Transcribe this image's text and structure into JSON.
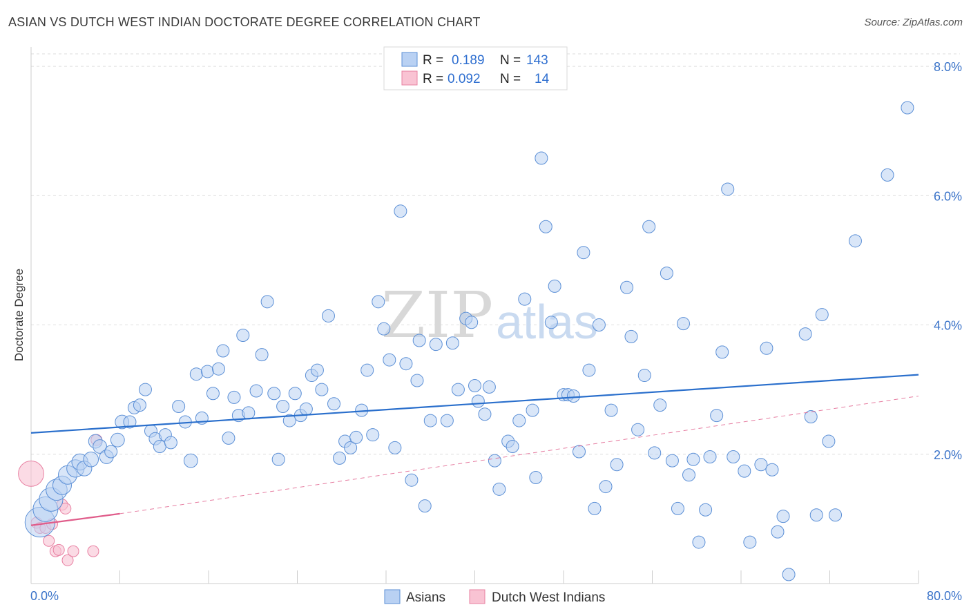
{
  "header": {
    "title": "ASIAN VS DUTCH WEST INDIAN DOCTORATE DEGREE CORRELATION CHART",
    "source": "Source: ZipAtlas.com"
  },
  "colors": {
    "blue_fill": "#b9d1f3",
    "blue_stroke": "#5b8fd6",
    "blue_line": "#2a6fcc",
    "pink_fill": "#f9c3d3",
    "pink_stroke": "#e880a2",
    "pink_line": "#e05c8a",
    "tick_label": "#3a73c9",
    "grid": "#dddddd"
  },
  "watermark": {
    "zip": "ZIP",
    "atlas": "atlas"
  },
  "legend": {
    "rows": [
      {
        "r_label": "R =",
        "r_value": "0.189",
        "n_label": "N =",
        "n_value": "143",
        "series": "blue"
      },
      {
        "r_label": "R =",
        "r_value": "0.092",
        "n_label": "N =",
        "n_value": "14",
        "series": "pink"
      }
    ]
  },
  "bottom_legend": [
    {
      "label": "Asians",
      "series": "blue"
    },
    {
      "label": "Dutch West Indians",
      "series": "pink"
    }
  ],
  "chart_data": {
    "type": "scatter",
    "title": "ASIAN VS DUTCH WEST INDIAN DOCTORATE DEGREE CORRELATION CHART",
    "xlabel": "",
    "ylabel": "Doctorate Degree",
    "xlim": [
      0,
      80
    ],
    "ylim": [
      0,
      8.3
    ],
    "x_tick_labels": [
      {
        "value": 0,
        "label": "0.0%"
      },
      {
        "value": 80,
        "label": "80.0%"
      }
    ],
    "y_tick_labels": [
      {
        "value": 2,
        "label": "2.0%"
      },
      {
        "value": 4,
        "label": "4.0%"
      },
      {
        "value": 6,
        "label": "6.0%"
      },
      {
        "value": 8,
        "label": "8.0%"
      }
    ],
    "y_gridlines": [
      2,
      4,
      6,
      8
    ],
    "x_ticks": [
      0,
      8,
      16,
      24,
      32,
      40,
      48,
      56,
      64,
      72,
      80
    ],
    "series": [
      {
        "name": "Asians",
        "color": "blue",
        "r": 0.189,
        "n": 143,
        "trend": {
          "x": [
            0,
            80
          ],
          "y": [
            2.33,
            3.23
          ]
        },
        "points": [
          {
            "x": 0.8,
            "y": 0.95,
            "s": 2.4
          },
          {
            "x": 1.3,
            "y": 1.15,
            "s": 2.0
          },
          {
            "x": 1.8,
            "y": 1.3,
            "s": 1.9
          },
          {
            "x": 2.3,
            "y": 1.45,
            "s": 1.7
          },
          {
            "x": 2.8,
            "y": 1.52,
            "s": 1.5
          },
          {
            "x": 3.3,
            "y": 1.68,
            "s": 1.5
          },
          {
            "x": 4.0,
            "y": 1.78,
            "s": 1.4
          },
          {
            "x": 4.4,
            "y": 1.88,
            "s": 1.3
          },
          {
            "x": 4.8,
            "y": 1.78,
            "s": 1.2
          },
          {
            "x": 5.4,
            "y": 1.92,
            "s": 1.2
          },
          {
            "x": 5.8,
            "y": 2.2,
            "s": 1.1
          },
          {
            "x": 6.2,
            "y": 2.12,
            "s": 1.1
          },
          {
            "x": 6.8,
            "y": 1.96,
            "s": 1.1
          },
          {
            "x": 7.2,
            "y": 2.04,
            "s": 1.0
          },
          {
            "x": 7.8,
            "y": 2.22,
            "s": 1.1
          },
          {
            "x": 8.2,
            "y": 2.5,
            "s": 1.1
          },
          {
            "x": 8.9,
            "y": 2.5,
            "s": 1.0
          },
          {
            "x": 9.3,
            "y": 2.72,
            "s": 1.0
          },
          {
            "x": 9.8,
            "y": 2.76,
            "s": 1.0
          },
          {
            "x": 10.3,
            "y": 3.0,
            "s": 1.0
          },
          {
            "x": 10.8,
            "y": 2.36,
            "s": 1.0
          },
          {
            "x": 11.2,
            "y": 2.24,
            "s": 1.0
          },
          {
            "x": 11.6,
            "y": 2.12,
            "s": 1.0
          },
          {
            "x": 12.1,
            "y": 2.3,
            "s": 1.0
          },
          {
            "x": 12.6,
            "y": 2.18,
            "s": 1.0
          },
          {
            "x": 13.3,
            "y": 2.74,
            "s": 1.0
          },
          {
            "x": 13.9,
            "y": 2.5,
            "s": 1.0
          },
          {
            "x": 14.4,
            "y": 1.9,
            "s": 1.1
          },
          {
            "x": 14.9,
            "y": 3.24,
            "s": 1.0
          },
          {
            "x": 15.4,
            "y": 2.56,
            "s": 1.0
          },
          {
            "x": 15.9,
            "y": 3.28,
            "s": 1.0
          },
          {
            "x": 16.4,
            "y": 2.94,
            "s": 1.0
          },
          {
            "x": 16.9,
            "y": 3.32,
            "s": 1.0
          },
          {
            "x": 17.3,
            "y": 3.6,
            "s": 1.0
          },
          {
            "x": 17.8,
            "y": 2.25,
            "s": 1.0
          },
          {
            "x": 18.3,
            "y": 2.88,
            "s": 1.0
          },
          {
            "x": 18.7,
            "y": 2.6,
            "s": 1.0
          },
          {
            "x": 19.1,
            "y": 3.84,
            "s": 1.0
          },
          {
            "x": 19.6,
            "y": 2.64,
            "s": 1.0
          },
          {
            "x": 20.3,
            "y": 2.98,
            "s": 1.0
          },
          {
            "x": 20.8,
            "y": 3.54,
            "s": 1.0
          },
          {
            "x": 21.3,
            "y": 4.36,
            "s": 1.0
          },
          {
            "x": 21.9,
            "y": 2.94,
            "s": 1.0
          },
          {
            "x": 22.3,
            "y": 1.92,
            "s": 1.0
          },
          {
            "x": 22.7,
            "y": 2.74,
            "s": 1.0
          },
          {
            "x": 23.3,
            "y": 2.52,
            "s": 1.0
          },
          {
            "x": 23.8,
            "y": 2.94,
            "s": 1.0
          },
          {
            "x": 24.3,
            "y": 2.6,
            "s": 1.0
          },
          {
            "x": 24.8,
            "y": 2.7,
            "s": 1.0
          },
          {
            "x": 25.3,
            "y": 3.22,
            "s": 1.0
          },
          {
            "x": 25.8,
            "y": 3.3,
            "s": 1.0
          },
          {
            "x": 26.2,
            "y": 3.0,
            "s": 1.0
          },
          {
            "x": 26.8,
            "y": 4.14,
            "s": 1.0
          },
          {
            "x": 27.3,
            "y": 2.78,
            "s": 1.0
          },
          {
            "x": 27.8,
            "y": 1.94,
            "s": 1.0
          },
          {
            "x": 28.3,
            "y": 2.2,
            "s": 1.0
          },
          {
            "x": 28.8,
            "y": 2.1,
            "s": 1.0
          },
          {
            "x": 29.3,
            "y": 2.26,
            "s": 1.0
          },
          {
            "x": 29.8,
            "y": 2.68,
            "s": 1.0
          },
          {
            "x": 30.3,
            "y": 3.3,
            "s": 1.0
          },
          {
            "x": 30.8,
            "y": 2.3,
            "s": 1.0
          },
          {
            "x": 31.3,
            "y": 4.36,
            "s": 1.0
          },
          {
            "x": 31.8,
            "y": 3.94,
            "s": 1.0
          },
          {
            "x": 32.3,
            "y": 3.46,
            "s": 1.0
          },
          {
            "x": 32.8,
            "y": 2.1,
            "s": 1.0
          },
          {
            "x": 33.3,
            "y": 5.76,
            "s": 1.0
          },
          {
            "x": 33.8,
            "y": 3.4,
            "s": 1.0
          },
          {
            "x": 34.3,
            "y": 1.6,
            "s": 1.0
          },
          {
            "x": 34.8,
            "y": 3.14,
            "s": 1.0
          },
          {
            "x": 35.0,
            "y": 3.76,
            "s": 1.0
          },
          {
            "x": 35.5,
            "y": 1.2,
            "s": 1.0
          },
          {
            "x": 36.0,
            "y": 2.52,
            "s": 1.0
          },
          {
            "x": 36.5,
            "y": 3.7,
            "s": 1.0
          },
          {
            "x": 37.5,
            "y": 2.52,
            "s": 1.0
          },
          {
            "x": 38.0,
            "y": 3.72,
            "s": 1.0
          },
          {
            "x": 38.5,
            "y": 3.0,
            "s": 1.0
          },
          {
            "x": 39.2,
            "y": 4.1,
            "s": 1.0
          },
          {
            "x": 39.7,
            "y": 4.04,
            "s": 1.0
          },
          {
            "x": 40.0,
            "y": 3.06,
            "s": 1.0
          },
          {
            "x": 40.3,
            "y": 2.82,
            "s": 1.0
          },
          {
            "x": 40.9,
            "y": 2.62,
            "s": 1.0
          },
          {
            "x": 41.3,
            "y": 3.04,
            "s": 1.0
          },
          {
            "x": 41.8,
            "y": 1.9,
            "s": 1.0
          },
          {
            "x": 42.2,
            "y": 1.46,
            "s": 1.0
          },
          {
            "x": 43.0,
            "y": 2.2,
            "s": 1.0
          },
          {
            "x": 43.4,
            "y": 2.12,
            "s": 1.0
          },
          {
            "x": 44.0,
            "y": 2.52,
            "s": 1.0
          },
          {
            "x": 44.5,
            "y": 4.4,
            "s": 1.0
          },
          {
            "x": 45.2,
            "y": 2.68,
            "s": 1.0
          },
          {
            "x": 45.5,
            "y": 1.64,
            "s": 1.0
          },
          {
            "x": 46.0,
            "y": 6.58,
            "s": 1.0
          },
          {
            "x": 46.4,
            "y": 5.52,
            "s": 1.0
          },
          {
            "x": 46.9,
            "y": 4.04,
            "s": 1.0
          },
          {
            "x": 47.2,
            "y": 4.6,
            "s": 1.0
          },
          {
            "x": 48.0,
            "y": 2.92,
            "s": 1.0
          },
          {
            "x": 48.4,
            "y": 2.92,
            "s": 1.0
          },
          {
            "x": 48.9,
            "y": 2.9,
            "s": 1.0
          },
          {
            "x": 49.4,
            "y": 2.04,
            "s": 1.0
          },
          {
            "x": 49.8,
            "y": 5.12,
            "s": 1.0
          },
          {
            "x": 50.3,
            "y": 3.3,
            "s": 1.0
          },
          {
            "x": 50.8,
            "y": 1.16,
            "s": 1.0
          },
          {
            "x": 51.2,
            "y": 4.0,
            "s": 1.0
          },
          {
            "x": 51.8,
            "y": 1.5,
            "s": 1.0
          },
          {
            "x": 52.3,
            "y": 2.68,
            "s": 1.0
          },
          {
            "x": 52.8,
            "y": 1.84,
            "s": 1.0
          },
          {
            "x": 53.7,
            "y": 4.58,
            "s": 1.0
          },
          {
            "x": 54.1,
            "y": 3.82,
            "s": 1.0
          },
          {
            "x": 54.7,
            "y": 2.38,
            "s": 1.0
          },
          {
            "x": 55.3,
            "y": 3.22,
            "s": 1.0
          },
          {
            "x": 55.7,
            "y": 5.52,
            "s": 1.0
          },
          {
            "x": 56.2,
            "y": 2.02,
            "s": 1.0
          },
          {
            "x": 56.7,
            "y": 2.76,
            "s": 1.0
          },
          {
            "x": 57.3,
            "y": 4.8,
            "s": 1.0
          },
          {
            "x": 57.8,
            "y": 1.9,
            "s": 1.0
          },
          {
            "x": 58.3,
            "y": 1.16,
            "s": 1.0
          },
          {
            "x": 58.8,
            "y": 4.02,
            "s": 1.0
          },
          {
            "x": 59.3,
            "y": 1.68,
            "s": 1.0
          },
          {
            "x": 59.7,
            "y": 1.92,
            "s": 1.0
          },
          {
            "x": 60.2,
            "y": 0.64,
            "s": 1.0
          },
          {
            "x": 60.8,
            "y": 1.14,
            "s": 1.0
          },
          {
            "x": 61.2,
            "y": 1.96,
            "s": 1.0
          },
          {
            "x": 61.8,
            "y": 2.6,
            "s": 1.0
          },
          {
            "x": 62.3,
            "y": 3.58,
            "s": 1.0
          },
          {
            "x": 62.8,
            "y": 6.1,
            "s": 1.0
          },
          {
            "x": 63.3,
            "y": 1.96,
            "s": 1.0
          },
          {
            "x": 64.3,
            "y": 1.74,
            "s": 1.0
          },
          {
            "x": 64.8,
            "y": 0.64,
            "s": 1.0
          },
          {
            "x": 65.8,
            "y": 1.84,
            "s": 1.0
          },
          {
            "x": 66.3,
            "y": 3.64,
            "s": 1.0
          },
          {
            "x": 66.8,
            "y": 1.76,
            "s": 1.0
          },
          {
            "x": 67.3,
            "y": 0.8,
            "s": 1.0
          },
          {
            "x": 67.8,
            "y": 1.04,
            "s": 1.0
          },
          {
            "x": 68.3,
            "y": 0.14,
            "s": 1.0
          },
          {
            "x": 69.8,
            "y": 3.86,
            "s": 1.0
          },
          {
            "x": 70.3,
            "y": 2.58,
            "s": 1.0
          },
          {
            "x": 70.8,
            "y": 1.06,
            "s": 1.0
          },
          {
            "x": 71.3,
            "y": 4.16,
            "s": 1.0
          },
          {
            "x": 71.9,
            "y": 2.2,
            "s": 1.0
          },
          {
            "x": 72.5,
            "y": 1.06,
            "s": 1.0
          },
          {
            "x": 74.3,
            "y": 5.3,
            "s": 1.0
          },
          {
            "x": 77.2,
            "y": 6.32,
            "s": 1.0
          },
          {
            "x": 79.0,
            "y": 7.36,
            "s": 1.0
          }
        ]
      },
      {
        "name": "Dutch West Indians",
        "color": "pink",
        "r": 0.092,
        "n": 14,
        "trend": {
          "x": [
            0,
            8
          ],
          "y": [
            0.9,
            1.08
          ],
          "dashed_extension": {
            "x": [
              8,
              80
            ],
            "y": [
              1.08,
              2.9
            ]
          }
        },
        "points": [
          {
            "x": 0.0,
            "y": 1.7,
            "s": 2.3
          },
          {
            "x": 0.5,
            "y": 0.94,
            "s": 1.0
          },
          {
            "x": 0.8,
            "y": 0.86,
            "s": 1.0
          },
          {
            "x": 1.3,
            "y": 0.86,
            "s": 1.0
          },
          {
            "x": 1.9,
            "y": 0.92,
            "s": 1.0
          },
          {
            "x": 1.6,
            "y": 0.66,
            "s": 1.0
          },
          {
            "x": 2.2,
            "y": 0.5,
            "s": 1.0
          },
          {
            "x": 2.5,
            "y": 0.52,
            "s": 1.0
          },
          {
            "x": 2.8,
            "y": 1.22,
            "s": 1.0
          },
          {
            "x": 3.1,
            "y": 1.16,
            "s": 1.0
          },
          {
            "x": 3.3,
            "y": 0.36,
            "s": 1.0
          },
          {
            "x": 3.8,
            "y": 0.5,
            "s": 1.0
          },
          {
            "x": 5.6,
            "y": 0.5,
            "s": 1.0
          },
          {
            "x": 5.9,
            "y": 2.22,
            "s": 1.0
          }
        ]
      }
    ]
  }
}
